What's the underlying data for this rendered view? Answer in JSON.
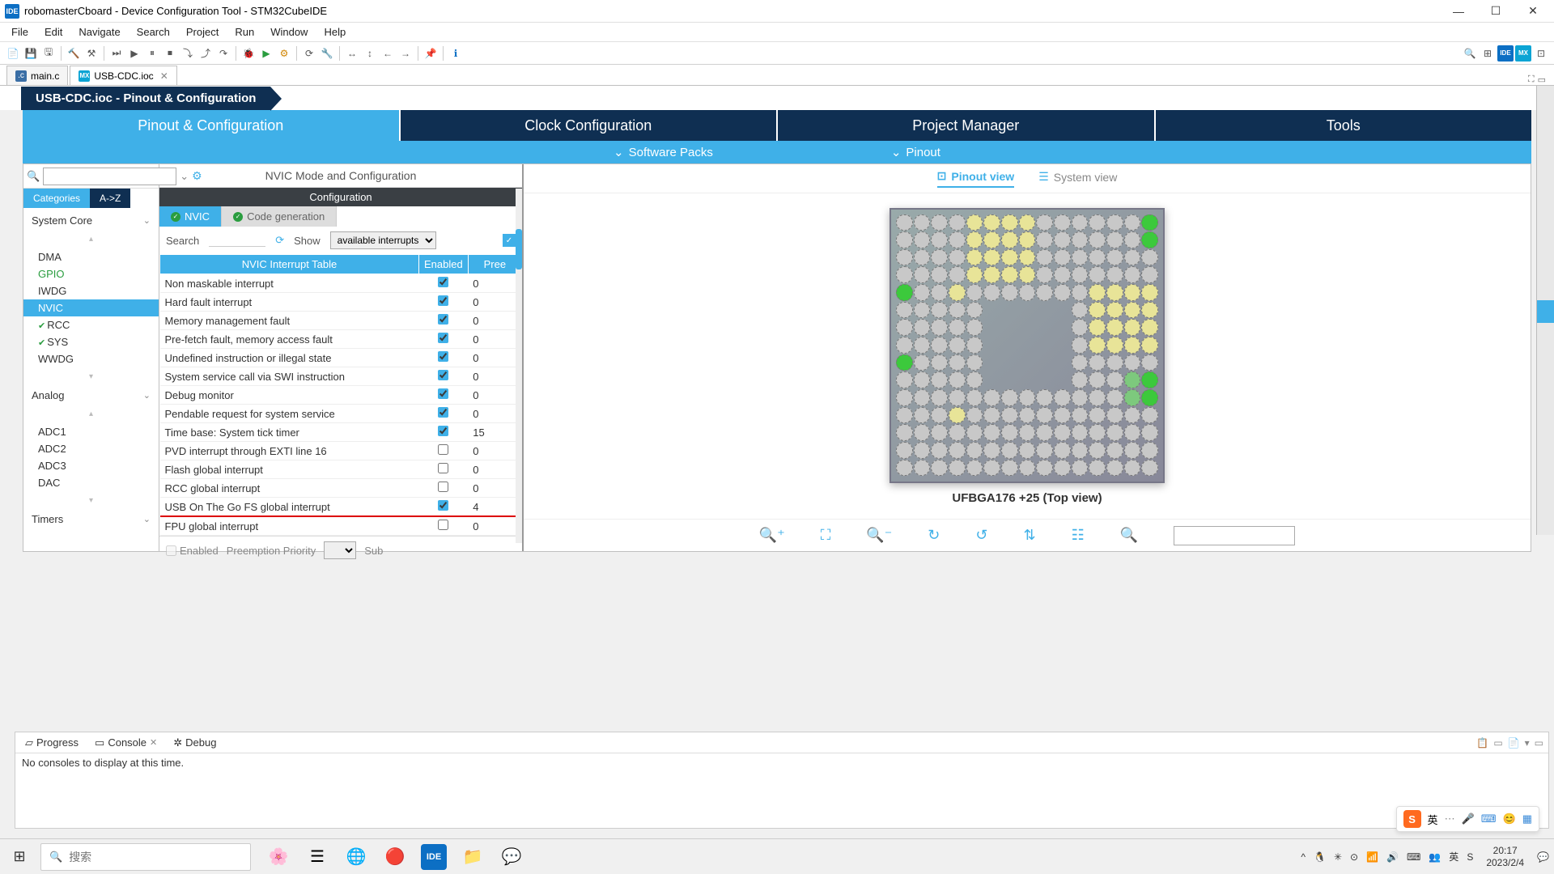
{
  "title": "robomasterCboard - Device Configuration Tool - STM32CubeIDE",
  "menu": [
    "File",
    "Edit",
    "Navigate",
    "Search",
    "Project",
    "Run",
    "Window",
    "Help"
  ],
  "editor_tabs": [
    {
      "icon": "c",
      "label": "main.c",
      "active": false
    },
    {
      "icon": "mx",
      "label": "USB-CDC.ioc",
      "active": true
    }
  ],
  "breadcrumb": "USB-CDC.ioc - Pinout & Configuration",
  "cfg_tabs": [
    "Pinout & Configuration",
    "Clock Configuration",
    "Project Manager",
    "Tools"
  ],
  "sub_bar": {
    "packs": "Software Packs",
    "pinout": "Pinout"
  },
  "center_title": "NVIC Mode and Configuration",
  "categories_label": "Categories",
  "az_label": "A->Z",
  "sections": {
    "system": {
      "title": "System Core",
      "items": [
        {
          "label": "DMA"
        },
        {
          "label": "GPIO",
          "green": true
        },
        {
          "label": "IWDG"
        },
        {
          "label": "NVIC",
          "selected": true
        },
        {
          "label": "RCC",
          "check": true
        },
        {
          "label": "SYS",
          "check": true
        },
        {
          "label": "WWDG"
        }
      ]
    },
    "analog": {
      "title": "Analog",
      "items": [
        {
          "label": "ADC1"
        },
        {
          "label": "ADC2"
        },
        {
          "label": "ADC3"
        },
        {
          "label": "DAC"
        }
      ]
    },
    "timers": {
      "title": "Timers"
    }
  },
  "cfg_header": "Configuration",
  "sub_tabs": [
    {
      "label": "NVIC",
      "active": true
    },
    {
      "label": "Code generation",
      "active": false
    }
  ],
  "search_label": "Search",
  "show_label": "Show",
  "show_value": "available interrupts",
  "table": {
    "headers": [
      "NVIC Interrupt Table",
      "Enabled",
      "Pree"
    ],
    "rows": [
      {
        "name": "Non maskable interrupt",
        "enabled": true,
        "pri": "0"
      },
      {
        "name": "Hard fault interrupt",
        "enabled": true,
        "pri": "0"
      },
      {
        "name": "Memory management fault",
        "enabled": true,
        "pri": "0"
      },
      {
        "name": "Pre-fetch fault, memory access fault",
        "enabled": true,
        "pri": "0"
      },
      {
        "name": "Undefined instruction or illegal state",
        "enabled": true,
        "pri": "0"
      },
      {
        "name": "System service call via SWI instruction",
        "enabled": true,
        "pri": "0"
      },
      {
        "name": "Debug monitor",
        "enabled": true,
        "pri": "0"
      },
      {
        "name": "Pendable request for system service",
        "enabled": true,
        "pri": "0"
      },
      {
        "name": "Time base: System tick timer",
        "enabled": true,
        "pri": "15"
      },
      {
        "name": "PVD interrupt through EXTI line 16",
        "enabled": false,
        "pri": "0"
      },
      {
        "name": "Flash global interrupt",
        "enabled": false,
        "pri": "0"
      },
      {
        "name": "RCC global interrupt",
        "enabled": false,
        "pri": "0"
      },
      {
        "name": "USB On The Go FS global interrupt",
        "enabled": true,
        "pri": "4",
        "underline": true
      },
      {
        "name": "FPU global interrupt",
        "enabled": false,
        "pri": "0"
      }
    ]
  },
  "btm_enabled": "Enabled",
  "btm_preempt": "Preemption Priority",
  "btm_sub": "Sub",
  "view_tabs": {
    "pinout": "Pinout view",
    "system": "System view"
  },
  "chip_label": "UFBGA176 +25 (Top view)",
  "bottom_tabs": [
    {
      "icon": "▱",
      "label": "Progress"
    },
    {
      "icon": "▭",
      "label": "Console",
      "close": true
    },
    {
      "icon": "✲",
      "label": "Debug"
    }
  ],
  "console_msg": "No consoles to display at this time.",
  "search_placeholder": "搜索",
  "taskbar_apps": [
    "🌸",
    "☰",
    "🌐",
    "🔴",
    "IDE",
    "📁",
    "💬"
  ],
  "tray_icons": [
    "^",
    "🐧",
    "✳",
    "⊙",
    "📶",
    "🔊",
    "⌨",
    "👥",
    "英",
    "S"
  ],
  "time": "20:17",
  "date": "2023/2/4",
  "ime": {
    "s": "S",
    "lang": "英",
    "icons": [
      "🎤",
      "⌨",
      "😊",
      "▦"
    ]
  },
  "chip_colors": {
    "gray": "#c8c8c8",
    "yellow": "#e8e498",
    "green": "#7dc97d",
    "bright": "#3cc93c"
  }
}
